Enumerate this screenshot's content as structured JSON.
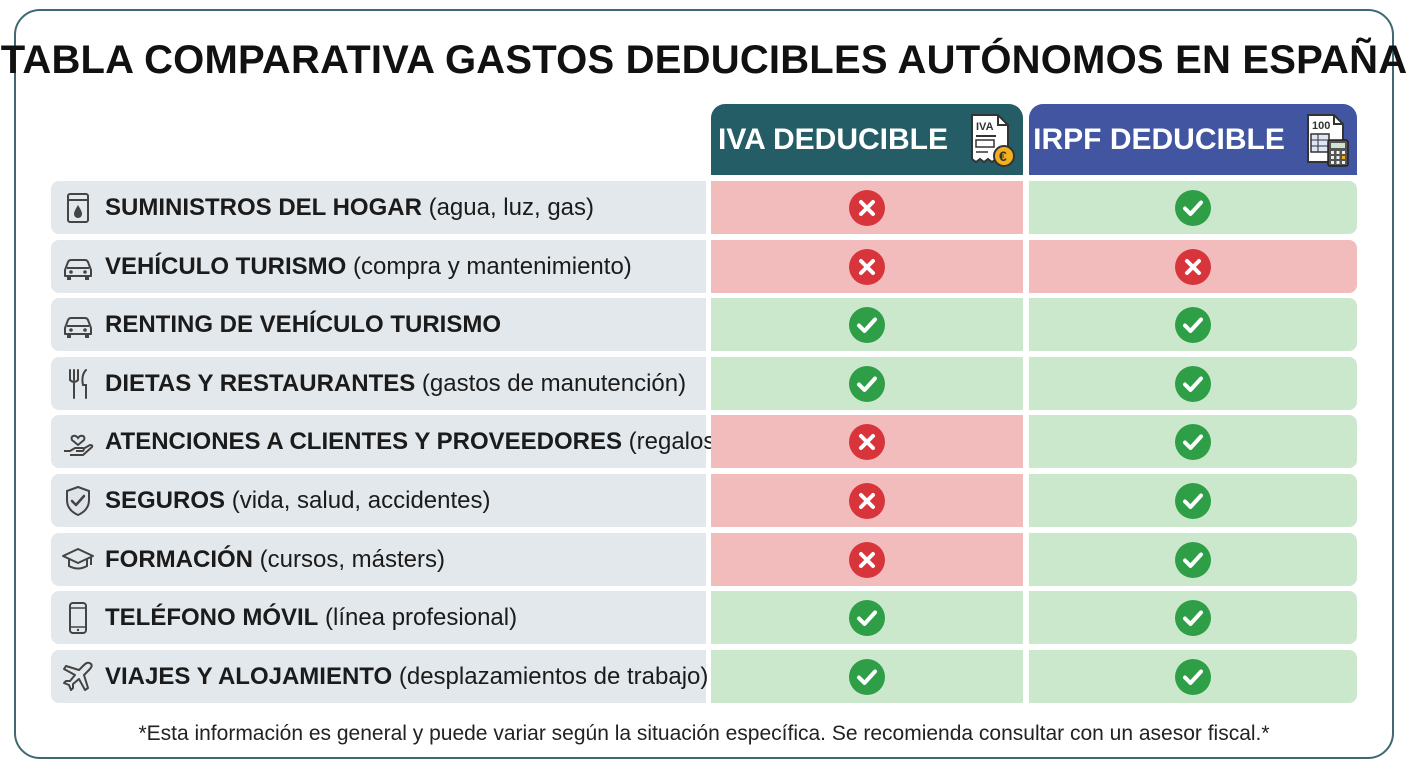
{
  "title": "TABLA COMPARATIVA GASTOS DEDUCIBLES AUTÓNOMOS EN ESPAÑA",
  "columns": {
    "iva": {
      "label": "IVA DEDUCIBLE",
      "icon": "invoice-euro-icon",
      "icon_text": "IVA",
      "color": "#255d66"
    },
    "irpf": {
      "label": "IRPF DEDUCIBLE",
      "icon": "form-calculator-icon",
      "icon_text": "100",
      "color": "#4155a0"
    }
  },
  "colors": {
    "yes_bg": "#cce8cc",
    "no_bg": "#f3bcbc",
    "yes_icon": "#2e9e47",
    "no_icon": "#d8343c"
  },
  "rows": [
    {
      "icon": "utilities-meter-icon",
      "bold": "SUMINISTROS DEL HOGAR",
      "detail": " (agua, luz, gas)",
      "iva": "no",
      "irpf": "yes"
    },
    {
      "icon": "car-icon",
      "bold": "VEHÍCULO TURISMO",
      "detail": " (compra y mantenimiento)",
      "iva": "no",
      "irpf": "no"
    },
    {
      "icon": "car-icon",
      "bold": "RENTING DE VEHÍCULO TURISMO",
      "detail": "",
      "iva": "yes",
      "irpf": "yes"
    },
    {
      "icon": "fork-knife-icon",
      "bold": "DIETAS Y RESTAURANTES",
      "detail": " (gastos de manutención)",
      "iva": "yes",
      "irpf": "yes"
    },
    {
      "icon": "hand-heart-icon",
      "bold": "ATENCIONES A CLIENTES Y PROVEEDORES",
      "detail": " (regalos)",
      "iva": "no",
      "irpf": "yes"
    },
    {
      "icon": "shield-check-icon",
      "bold": "SEGUROS",
      "detail": " (vida, salud, accidentes)",
      "iva": "no",
      "irpf": "yes"
    },
    {
      "icon": "graduation-cap-icon",
      "bold": "FORMACIÓN",
      "detail": " (cursos, másters)",
      "iva": "no",
      "irpf": "yes"
    },
    {
      "icon": "mobile-phone-icon",
      "bold": "TELÉFONO MÓVIL",
      "detail": " (línea profesional)",
      "iva": "yes",
      "irpf": "yes"
    },
    {
      "icon": "airplane-icon",
      "bold": "VIAJES Y ALOJAMIENTO",
      "detail": " (desplazamientos de trabajo)",
      "iva": "yes",
      "irpf": "yes"
    }
  ],
  "footnote": "*Esta información es general y puede variar según la situación específica. Se recomienda consultar con un asesor fiscal.*"
}
